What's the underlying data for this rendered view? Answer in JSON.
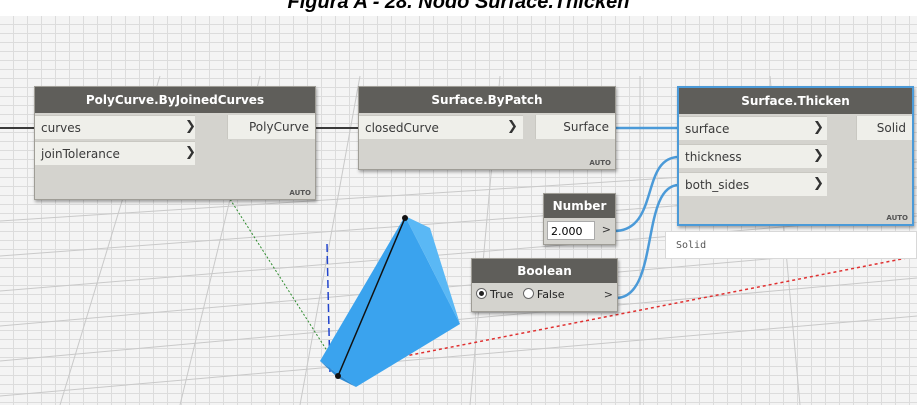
{
  "figure_caption": "Figura A - 28. Nodo Surface.Thicken",
  "nodes": {
    "polycurve": {
      "title": "PolyCurve.ByJoinedCurves",
      "inputs": [
        "curves",
        "joinTolerance"
      ],
      "output": "PolyCurve",
      "lacing": "AUTO"
    },
    "patch": {
      "title": "Surface.ByPatch",
      "inputs": [
        "closedCurve"
      ],
      "output": "Surface",
      "lacing": "AUTO"
    },
    "thicken": {
      "title": "Surface.Thicken",
      "inputs": [
        "surface",
        "thickness",
        "both_sides"
      ],
      "output": "Solid",
      "lacing": "AUTO",
      "preview": "Solid"
    },
    "number": {
      "title": "Number",
      "value": "2.000",
      "out_label": ">"
    },
    "boolean": {
      "title": "Boolean",
      "option_true": "True",
      "option_false": "False",
      "selected": "True",
      "out_label": ">"
    }
  },
  "colors": {
    "wire": "#4b9ad8",
    "selected_border": "#4b9ad8",
    "solid_preview": "#3aa3ee",
    "node_title_bg": "#5f5e5a"
  },
  "icons": [
    "chevron-right-icon",
    "radio-button-icon"
  ]
}
